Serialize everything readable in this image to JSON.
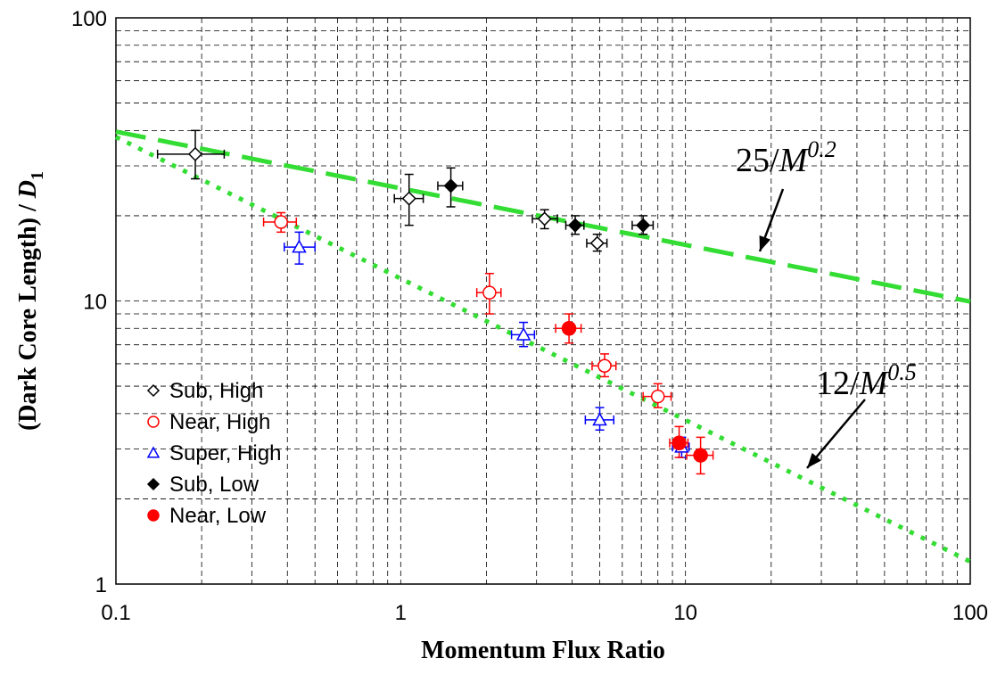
{
  "chart_data": {
    "type": "scatter",
    "xlabel": "Momentum Flux Ratio",
    "ylabel": {
      "main": "(Dark Core Length) / ",
      "var": "D",
      "sub": "1"
    },
    "xscale": "log",
    "yscale": "log",
    "xlim": [
      0.1,
      100
    ],
    "ylim": [
      1,
      100
    ],
    "xticks": [
      {
        "value": 0.1,
        "label": "0.1"
      },
      {
        "value": 1,
        "label": "1"
      },
      {
        "value": 10,
        "label": "10"
      },
      {
        "value": 100,
        "label": "100"
      }
    ],
    "yticks": [
      {
        "value": 1,
        "label": "1"
      },
      {
        "value": 10,
        "label": "10"
      },
      {
        "value": 100,
        "label": "100"
      }
    ],
    "grid": true,
    "legend_position": "bottom-left",
    "series": [
      {
        "name": "Sub, High",
        "marker": "diamond-open",
        "color": "#000000",
        "points": [
          {
            "x": 0.19,
            "y": 33,
            "xerr": [
              0.14,
              0.24
            ],
            "yerr": [
              27,
              40
            ]
          },
          {
            "x": 1.07,
            "y": 23,
            "xerr": [
              0.95,
              1.2
            ],
            "yerr": [
              18.5,
              28
            ]
          },
          {
            "x": 3.2,
            "y": 19.5,
            "xerr": [
              2.9,
              3.55
            ],
            "yerr": [
              18,
              21
            ]
          },
          {
            "x": 4.9,
            "y": 16,
            "xerr": [
              4.5,
              5.3
            ],
            "yerr": [
              15,
              17.2
            ]
          }
        ]
      },
      {
        "name": "Near, High",
        "marker": "circle-open",
        "color": "#ff0000",
        "points": [
          {
            "x": 0.38,
            "y": 19,
            "xerr": [
              0.33,
              0.43
            ],
            "yerr": [
              17.5,
              20.5
            ]
          },
          {
            "x": 2.05,
            "y": 10.7,
            "xerr": [
              1.85,
              2.25
            ],
            "yerr": [
              9,
              12.5
            ]
          },
          {
            "x": 5.2,
            "y": 5.9,
            "xerr": [
              4.7,
              5.7
            ],
            "yerr": [
              5.4,
              6.5
            ]
          },
          {
            "x": 8.0,
            "y": 4.6,
            "xerr": [
              7.1,
              8.9
            ],
            "yerr": [
              4.2,
              5.1
            ]
          }
        ]
      },
      {
        "name": "Super, High",
        "marker": "triangle-open",
        "color": "#0000ff",
        "points": [
          {
            "x": 0.44,
            "y": 15.5,
            "xerr": [
              0.39,
              0.5
            ],
            "yerr": [
              13.5,
              17.5
            ]
          },
          {
            "x": 2.7,
            "y": 7.6,
            "xerr": [
              2.45,
              2.95
            ],
            "yerr": [
              6.9,
              8.4
            ]
          },
          {
            "x": 5.0,
            "y": 3.8,
            "xerr": [
              4.45,
              5.6
            ],
            "yerr": [
              3.5,
              4.2
            ]
          },
          {
            "x": 9.7,
            "y": 3.05,
            "xerr": [
              9.0,
              10.3
            ],
            "yerr": [
              2.8,
              3.3
            ]
          }
        ]
      },
      {
        "name": "Sub, Low",
        "marker": "diamond-filled",
        "color": "#000000",
        "points": [
          {
            "x": 1.5,
            "y": 25.5,
            "xerr": [
              1.35,
              1.65
            ],
            "yerr": [
              21.5,
              29.5
            ]
          },
          {
            "x": 4.1,
            "y": 18.5,
            "xerr": [
              3.8,
              4.4
            ],
            "yerr": [
              17.2,
              20
            ]
          },
          {
            "x": 7.1,
            "y": 18.5,
            "xerr": [
              6.5,
              7.7
            ],
            "yerr": [
              17.2,
              20
            ]
          }
        ]
      },
      {
        "name": "Near, Low",
        "marker": "circle-filled",
        "color": "#ff0000",
        "points": [
          {
            "x": 3.9,
            "y": 8.0,
            "xerr": [
              3.5,
              4.3
            ],
            "yerr": [
              7.1,
              9
            ]
          },
          {
            "x": 9.5,
            "y": 3.15,
            "xerr": [
              8.8,
              10.2
            ],
            "yerr": [
              2.8,
              3.6
            ]
          },
          {
            "x": 11.3,
            "y": 2.85,
            "xerr": [
              10.1,
              12.5
            ],
            "yerr": [
              2.45,
              3.3
            ]
          }
        ]
      }
    ],
    "fit_lines": [
      {
        "label_num": "25/",
        "label_var": "M",
        "label_exp": "0.2",
        "coef": 25,
        "exponent": -0.2,
        "color": "#33dd33",
        "style": "dashed"
      },
      {
        "label_num": "12/",
        "label_var": "M",
        "label_exp": "0.5",
        "coef": 12,
        "exponent": -0.5,
        "color": "#33dd33",
        "style": "dotted"
      }
    ]
  }
}
